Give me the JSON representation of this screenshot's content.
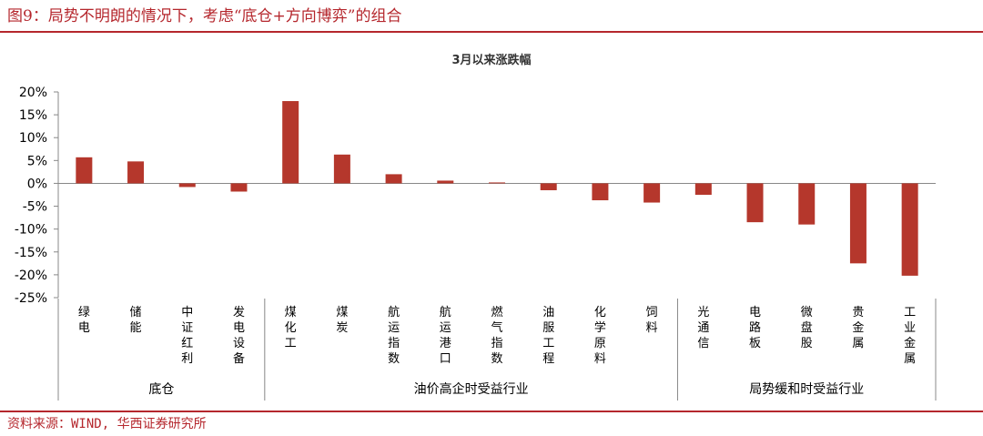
{
  "figure": {
    "title": "图9：局势不明朗的情况下，考虑“底仓+方向博弈”的组合",
    "source": "资料来源：WIND, 华西证券研究所"
  },
  "colors": {
    "accent": "#b5272d",
    "bar": "#b5372c",
    "axis": "#888888"
  },
  "chart_data": {
    "type": "bar",
    "title": "3月以来涨跌幅",
    "categories": [
      "绿电",
      "储能",
      "中证红利",
      "发电设备",
      "煤化工",
      "煤炭",
      "航运指数",
      "航运港口",
      "燃气指数",
      "油服工程",
      "化学原料",
      "饲料",
      "光通信",
      "电路板",
      "微盘股",
      "贵金属",
      "工业金属"
    ],
    "values": [
      5.7,
      4.8,
      -0.8,
      -1.8,
      18.0,
      6.3,
      2.0,
      0.6,
      0.2,
      -1.5,
      -3.7,
      -4.2,
      -2.5,
      -8.5,
      -9.0,
      -17.5,
      -20.2
    ],
    "groups": [
      {
        "label": "底仓",
        "count": 4
      },
      {
        "label": "油价高企时受益行业",
        "count": 8
      },
      {
        "label": "局势缓和时受益行业",
        "count": 5
      }
    ],
    "ylim": [
      -25,
      20
    ],
    "yticks": [
      "-25%",
      "-20%",
      "-15%",
      "-10%",
      "-5%",
      "0%",
      "5%",
      "10%",
      "15%",
      "20%"
    ],
    "ytick_values": [
      -25,
      -20,
      -15,
      -10,
      -5,
      0,
      5,
      10,
      15,
      20
    ],
    "grid": false,
    "legend": "none"
  }
}
